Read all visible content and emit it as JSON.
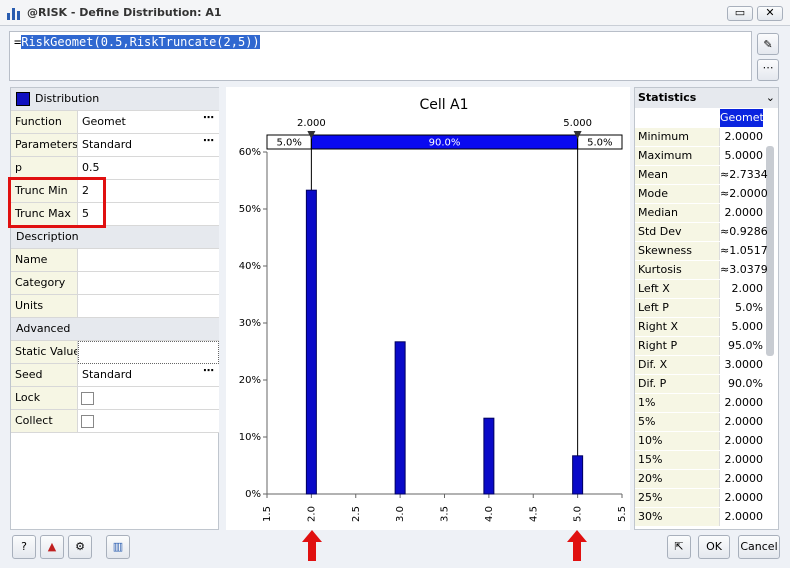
{
  "window": {
    "title": "@RISK - Define Distribution: A1"
  },
  "formula": {
    "prefix": "=",
    "text": "RiskGeomet(0.5,RiskTruncate(2,5))"
  },
  "properties": {
    "header": "Distribution",
    "rows": [
      [
        "Function",
        "Geomet"
      ],
      [
        "Parameters",
        "Standard"
      ],
      [
        "p",
        "0.5"
      ],
      [
        "Trunc Min",
        "2"
      ],
      [
        "Trunc Max",
        "5"
      ]
    ],
    "description": {
      "title": "Description",
      "rows": [
        "Name",
        "Category",
        "Units"
      ]
    },
    "advanced": {
      "title": "Advanced",
      "rows": [
        "Static Value",
        [
          "Seed",
          "Standard"
        ],
        "Lock",
        "Collect"
      ]
    }
  },
  "chart_data": {
    "type": "bar",
    "title": "Cell A1",
    "x": [
      2,
      3,
      4,
      5
    ],
    "values": [
      53.3,
      26.7,
      13.3,
      6.7
    ],
    "color": "#0a0ac8",
    "xlim": [
      1.5,
      5.5
    ],
    "xticks": [
      {
        "value": 1.5,
        "label": "1.5"
      },
      {
        "value": 2,
        "label": "2.0"
      },
      {
        "value": 2.5,
        "label": "2.5"
      },
      {
        "value": 3,
        "label": "3.0"
      },
      {
        "value": 3.5,
        "label": "3.5"
      },
      {
        "value": 4,
        "label": "4.0"
      },
      {
        "value": 4.5,
        "label": "4.5"
      },
      {
        "value": 5,
        "label": "5.0"
      },
      {
        "value": 5.5,
        "label": "5.5"
      }
    ],
    "ylim": [
      0,
      60
    ],
    "yticks": [
      {
        "value": 0,
        "label": "0%"
      },
      {
        "value": 10,
        "label": "10%"
      },
      {
        "value": 20,
        "label": "20%"
      },
      {
        "value": 30,
        "label": "30%"
      },
      {
        "value": 40,
        "label": "40%"
      },
      {
        "value": 50,
        "label": "50%"
      },
      {
        "value": 60,
        "label": "60%"
      }
    ],
    "delimiters": [
      {
        "value": 2,
        "label": "2.000"
      },
      {
        "value": 5,
        "label": "5.000"
      }
    ],
    "regions": [
      {
        "value": 5,
        "label": "5.0%"
      },
      {
        "value": 90,
        "label": "90.0%"
      },
      {
        "value": 5,
        "label": "5.0%"
      }
    ]
  },
  "statistics": {
    "title": "Statistics",
    "column": "Geomet",
    "rows": [
      [
        "Minimum",
        "2.0000"
      ],
      [
        "Maximum",
        "5.0000"
      ],
      [
        "Mean",
        "≈2.7334"
      ],
      [
        "Mode",
        "≈2.0000"
      ],
      [
        "Median",
        "2.0000"
      ],
      [
        "Std Dev",
        "≈0.9286"
      ],
      [
        "Skewness",
        "≈1.0517"
      ],
      [
        "Kurtosis",
        "≈3.0379"
      ],
      [
        "Left X",
        "2.000"
      ],
      [
        "Left P",
        "5.0%"
      ],
      [
        "Right X",
        "5.000"
      ],
      [
        "Right P",
        "95.0%"
      ],
      [
        "Dif. X",
        "3.0000"
      ],
      [
        "Dif. P",
        "90.0%"
      ],
      [
        "1%",
        "2.0000"
      ],
      [
        "5%",
        "2.0000"
      ],
      [
        "10%",
        "2.0000"
      ],
      [
        "15%",
        "2.0000"
      ],
      [
        "20%",
        "2.0000"
      ],
      [
        "25%",
        "2.0000"
      ],
      [
        "30%",
        "2.0000"
      ]
    ]
  },
  "buttons": {
    "ok": "OK",
    "cancel": "Cancel"
  }
}
